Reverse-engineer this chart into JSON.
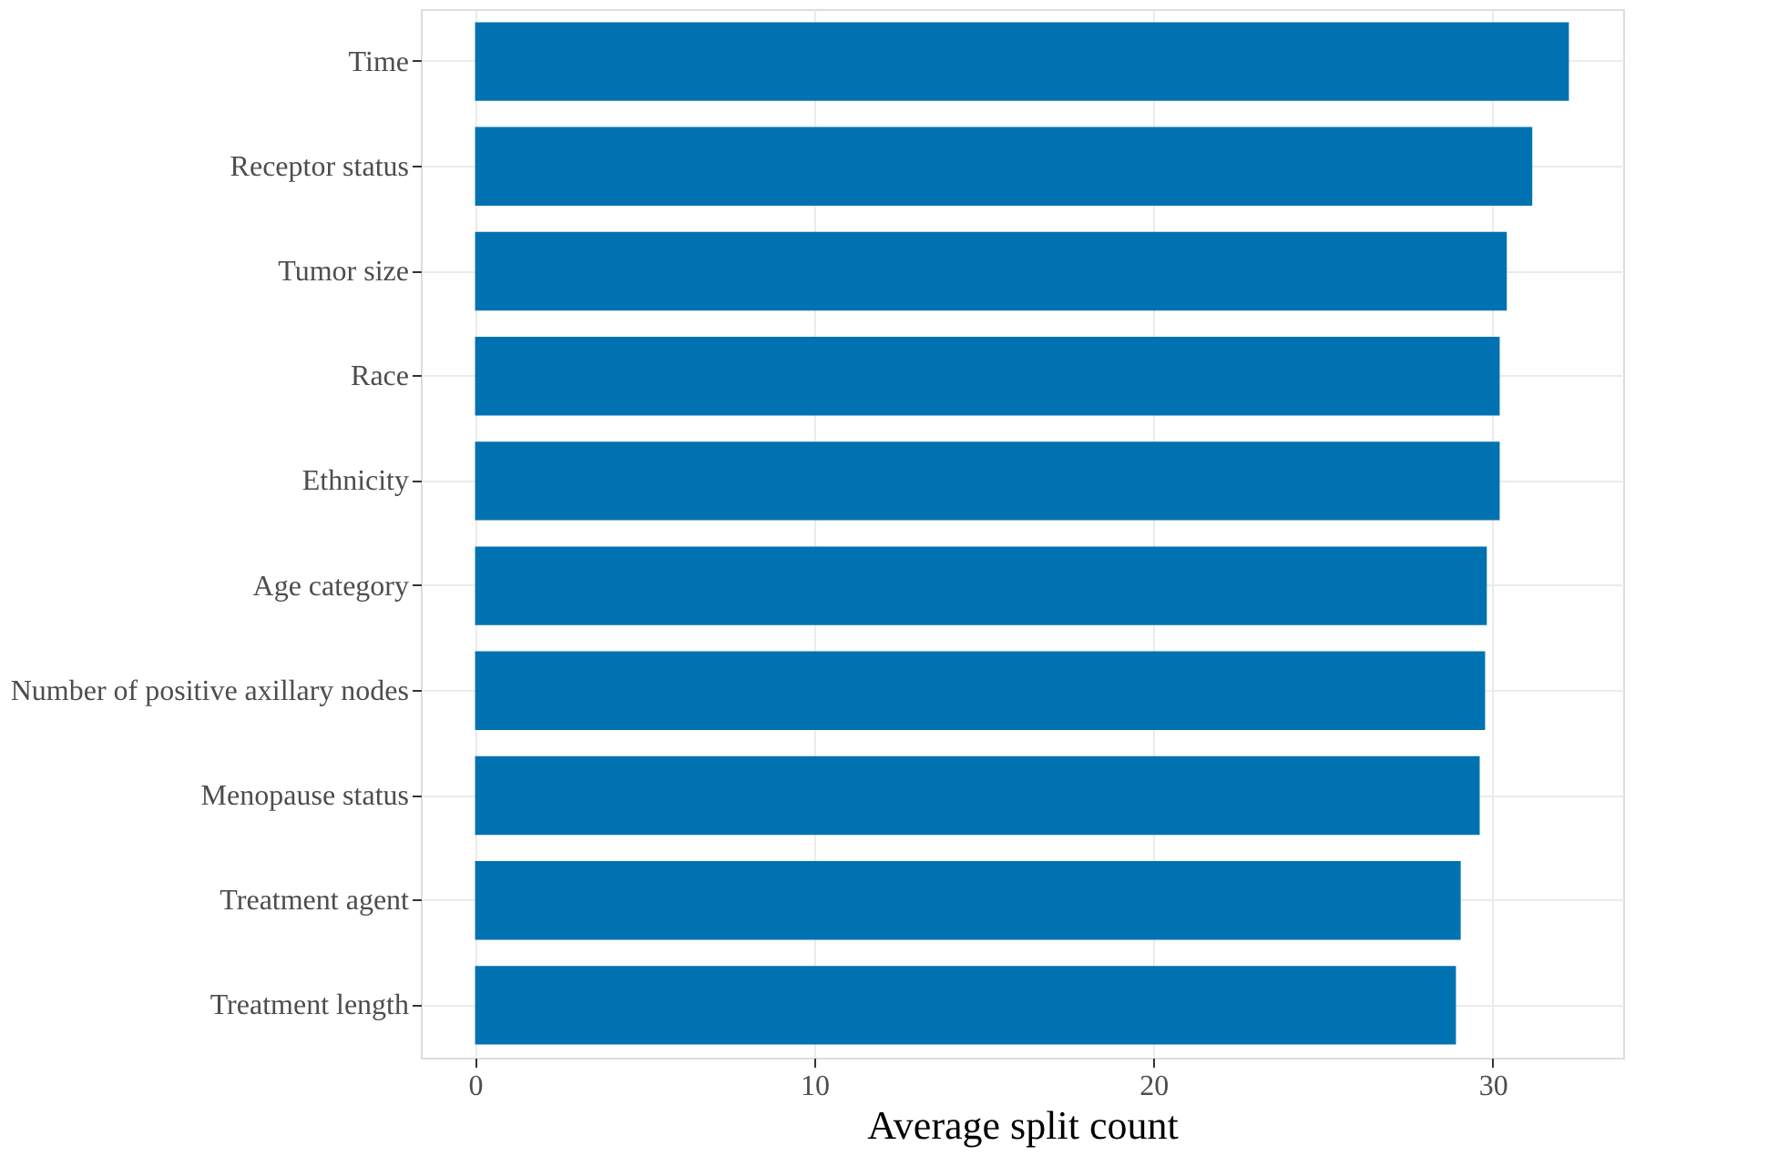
{
  "chart_data": {
    "type": "bar",
    "orientation": "horizontal",
    "xlabel": "Average split count",
    "categories": [
      "Time",
      "Receptor status",
      "Tumor size",
      "Race",
      "Ethnicity",
      "Age category",
      "Number of positive axillary nodes",
      "Menopause status",
      "Treatment agent",
      "Treatment length"
    ],
    "values": [
      32.25,
      31.17,
      30.42,
      30.21,
      30.21,
      29.83,
      29.78,
      29.62,
      29.06,
      28.92
    ],
    "color": "#0072b2",
    "xlim": [
      -1.6,
      33.85
    ],
    "xticks": [
      0,
      10,
      20,
      30
    ],
    "grid": true
  }
}
